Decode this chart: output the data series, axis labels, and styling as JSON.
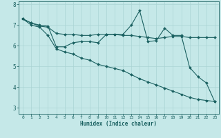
{
  "xlabel": "Humidex (Indice chaleur)",
  "background_color": "#c5e8e8",
  "grid_color": "#aad4d4",
  "line_color": "#1a6060",
  "xlim": [
    -0.5,
    23.5
  ],
  "ylim": [
    2.7,
    8.15
  ],
  "yticks": [
    3,
    4,
    5,
    6,
    7,
    8
  ],
  "xticks": [
    0,
    1,
    2,
    3,
    4,
    5,
    6,
    7,
    8,
    9,
    10,
    11,
    12,
    13,
    14,
    15,
    16,
    17,
    18,
    19,
    20,
    21,
    22,
    23
  ],
  "line1_x": [
    0,
    1,
    2,
    3,
    4,
    5,
    6,
    7,
    8,
    9,
    10,
    11,
    12,
    13,
    14,
    15,
    16,
    17,
    18,
    19,
    20,
    21,
    22,
    23
  ],
  "line1_y": [
    7.3,
    7.1,
    7.0,
    6.95,
    5.95,
    5.95,
    6.15,
    6.2,
    6.2,
    6.15,
    6.55,
    6.55,
    6.55,
    7.0,
    7.7,
    6.2,
    6.25,
    6.85,
    6.5,
    6.5,
    4.95,
    4.5,
    4.2,
    3.3
  ],
  "line2_x": [
    0,
    1,
    2,
    3,
    4,
    5,
    6,
    7,
    8,
    9,
    10,
    11,
    12,
    13,
    14,
    15,
    16,
    17,
    18,
    19,
    20,
    21,
    22,
    23
  ],
  "line2_y": [
    7.3,
    7.1,
    6.95,
    6.9,
    6.6,
    6.55,
    6.55,
    6.5,
    6.5,
    6.55,
    6.55,
    6.55,
    6.5,
    6.5,
    6.45,
    6.4,
    6.35,
    6.4,
    6.45,
    6.45,
    6.4,
    6.4,
    6.4,
    6.4
  ],
  "line3_x": [
    0,
    1,
    2,
    3,
    4,
    5,
    6,
    7,
    8,
    9,
    10,
    11,
    12,
    13,
    14,
    15,
    16,
    17,
    18,
    19,
    20,
    21,
    22,
    23
  ],
  "line3_y": [
    7.3,
    7.0,
    6.9,
    6.5,
    5.85,
    5.7,
    5.6,
    5.4,
    5.3,
    5.1,
    5.0,
    4.9,
    4.8,
    4.6,
    4.4,
    4.25,
    4.1,
    3.95,
    3.8,
    3.65,
    3.5,
    3.4,
    3.35,
    3.3
  ]
}
